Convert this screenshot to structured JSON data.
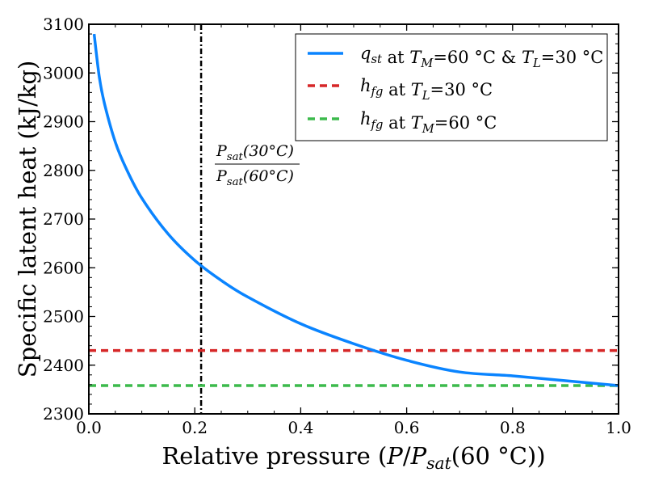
{
  "chart_data": {
    "type": "line",
    "xlabel": "Relative pressure (P/P_sat(60 °C))",
    "ylabel": "Specific latent heat (kJ/kg)",
    "xlim": [
      0.0,
      1.0
    ],
    "ylim": [
      2300,
      3100
    ],
    "x_ticks": [
      0.0,
      0.2,
      0.4,
      0.6,
      0.8,
      1.0
    ],
    "x_tick_labels": [
      "0.0",
      "0.2",
      "0.4",
      "0.6",
      "0.8",
      "1.0"
    ],
    "y_ticks": [
      2300,
      2400,
      2500,
      2600,
      2700,
      2800,
      2900,
      3000,
      3100
    ],
    "y_tick_labels": [
      "2300",
      "2400",
      "2500",
      "2600",
      "2700",
      "2800",
      "2900",
      "3000",
      "3100"
    ],
    "grid": false,
    "legend_position": "top-right",
    "series": [
      {
        "name": "q_st at T_M=60 °C & T_L=30 °C",
        "color": "#0a84ff",
        "style": "solid",
        "x": [
          0.01,
          0.02,
          0.03,
          0.05,
          0.07,
          0.1,
          0.15,
          0.2,
          0.25,
          0.3,
          0.4,
          0.5,
          0.6,
          0.7,
          0.8,
          0.9,
          1.0
        ],
        "y": [
          3080,
          2990,
          2935,
          2858,
          2805,
          2743,
          2669,
          2615,
          2574,
          2540,
          2485,
          2444,
          2410,
          2386,
          2378,
          2368,
          2358
        ]
      },
      {
        "name": "h_fg at T_L=30 °C",
        "color": "#d62728",
        "style": "dashed",
        "x": [
          0.0,
          1.0
        ],
        "y": [
          2430,
          2430
        ]
      },
      {
        "name": "h_fg at T_M=60 °C",
        "color": "#3cba4c",
        "style": "dashed",
        "x": [
          0.0,
          1.0
        ],
        "y": [
          2358,
          2358
        ]
      }
    ],
    "vline": {
      "x": 0.212,
      "color": "#000000",
      "style": "dashdot",
      "annotation_numerator": "P_sat(30°C)",
      "annotation_denominator": "P_sat(60°C)"
    }
  }
}
